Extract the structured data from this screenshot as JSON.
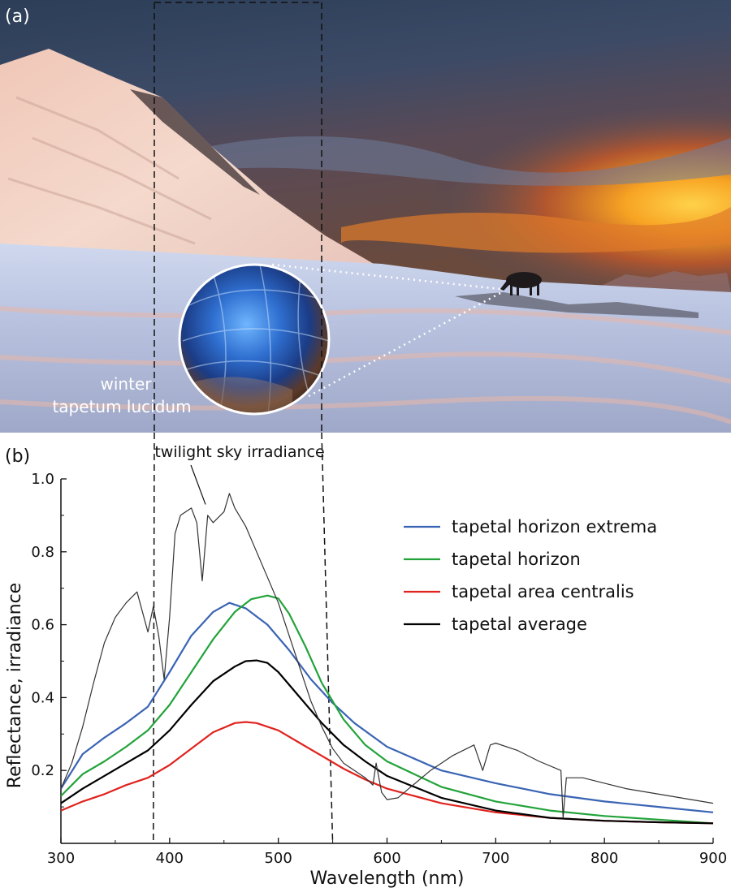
{
  "panel_a": {
    "label": "(a)",
    "caption_line1": "winter",
    "caption_line2": "tapetum lucidum"
  },
  "panel_b": {
    "label": "(b)"
  },
  "chart_data": {
    "type": "line",
    "title": "",
    "xlabel": "Wavelength (nm)",
    "ylabel": "Reflectance, irradiance",
    "xlim": [
      300,
      900
    ],
    "ylim": [
      0.0,
      1.0
    ],
    "xticks": [
      300,
      400,
      500,
      600,
      700,
      800,
      900
    ],
    "yticks": [
      0.2,
      0.4,
      0.6,
      0.8,
      1.0
    ],
    "xtick_labels": [
      "300",
      "400",
      "500",
      "600",
      "700",
      "800",
      "900"
    ],
    "ytick_labels": [
      "0.2",
      "0.4",
      "0.6",
      "0.8",
      "1.0"
    ],
    "grid": false,
    "legend_position": "top-right",
    "reference_lines_x": [
      385,
      550
    ],
    "annotation": {
      "text": "twilight sky irradiance",
      "points_to": {
        "x": 433,
        "y": 0.93
      }
    },
    "series": [
      {
        "name": "tapetal horizon extrema",
        "color": "#3a64b4",
        "x": [
          300,
          320,
          340,
          360,
          380,
          400,
          420,
          440,
          455,
          470,
          490,
          510,
          530,
          550,
          570,
          600,
          650,
          700,
          750,
          800,
          850,
          900
        ],
        "y": [
          0.15,
          0.245,
          0.29,
          0.33,
          0.375,
          0.47,
          0.57,
          0.635,
          0.66,
          0.645,
          0.6,
          0.53,
          0.45,
          0.385,
          0.33,
          0.265,
          0.2,
          0.165,
          0.135,
          0.115,
          0.1,
          0.085
        ]
      },
      {
        "name": "tapetal horizon",
        "color": "#22a33a",
        "x": [
          300,
          320,
          340,
          360,
          380,
          400,
          420,
          440,
          460,
          475,
          490,
          500,
          510,
          525,
          540,
          560,
          580,
          600,
          650,
          700,
          750,
          800,
          850,
          900
        ],
        "y": [
          0.13,
          0.19,
          0.225,
          0.265,
          0.31,
          0.38,
          0.47,
          0.56,
          0.635,
          0.67,
          0.68,
          0.672,
          0.63,
          0.54,
          0.44,
          0.34,
          0.27,
          0.225,
          0.155,
          0.115,
          0.09,
          0.075,
          0.065,
          0.055
        ]
      },
      {
        "name": "tapetal area centralis",
        "color": "#e0231e",
        "x": [
          300,
          320,
          340,
          360,
          380,
          400,
          420,
          440,
          460,
          470,
          480,
          500,
          520,
          540,
          560,
          580,
          600,
          650,
          700,
          750,
          800,
          850,
          900
        ],
        "y": [
          0.09,
          0.115,
          0.135,
          0.16,
          0.18,
          0.215,
          0.26,
          0.305,
          0.33,
          0.333,
          0.33,
          0.31,
          0.275,
          0.24,
          0.205,
          0.175,
          0.15,
          0.11,
          0.085,
          0.07,
          0.062,
          0.058,
          0.055
        ]
      },
      {
        "name": "tapetal average",
        "color": "#000000",
        "x": [
          300,
          320,
          340,
          360,
          380,
          400,
          420,
          440,
          460,
          470,
          480,
          490,
          500,
          520,
          540,
          560,
          580,
          600,
          650,
          700,
          750,
          800,
          850,
          900
        ],
        "y": [
          0.11,
          0.15,
          0.185,
          0.22,
          0.255,
          0.31,
          0.38,
          0.445,
          0.485,
          0.5,
          0.502,
          0.495,
          0.47,
          0.4,
          0.33,
          0.27,
          0.225,
          0.185,
          0.125,
          0.09,
          0.07,
          0.062,
          0.058,
          0.055
        ]
      },
      {
        "name": "twilight sky irradiance",
        "color": "#333333",
        "x": [
          300,
          310,
          320,
          330,
          340,
          350,
          360,
          370,
          380,
          385,
          390,
          395,
          400,
          405,
          410,
          420,
          425,
          430,
          435,
          440,
          450,
          455,
          460,
          470,
          480,
          490,
          500,
          510,
          520,
          530,
          540,
          550,
          560,
          570,
          580,
          587,
          590,
          595,
          600,
          610,
          620,
          640,
          660,
          680,
          688,
          695,
          700,
          720,
          740,
          760,
          762,
          765,
          780,
          800,
          820,
          840,
          860,
          880,
          900
        ],
        "y": [
          0.15,
          0.22,
          0.32,
          0.44,
          0.55,
          0.62,
          0.66,
          0.69,
          0.58,
          0.65,
          0.57,
          0.45,
          0.62,
          0.85,
          0.9,
          0.92,
          0.88,
          0.72,
          0.9,
          0.88,
          0.91,
          0.96,
          0.92,
          0.87,
          0.8,
          0.73,
          0.66,
          0.57,
          0.48,
          0.39,
          0.32,
          0.26,
          0.22,
          0.2,
          0.18,
          0.16,
          0.22,
          0.14,
          0.12,
          0.125,
          0.15,
          0.2,
          0.24,
          0.27,
          0.2,
          0.27,
          0.275,
          0.255,
          0.225,
          0.2,
          0.07,
          0.18,
          0.18,
          0.165,
          0.15,
          0.14,
          0.13,
          0.12,
          0.11
        ]
      }
    ]
  }
}
